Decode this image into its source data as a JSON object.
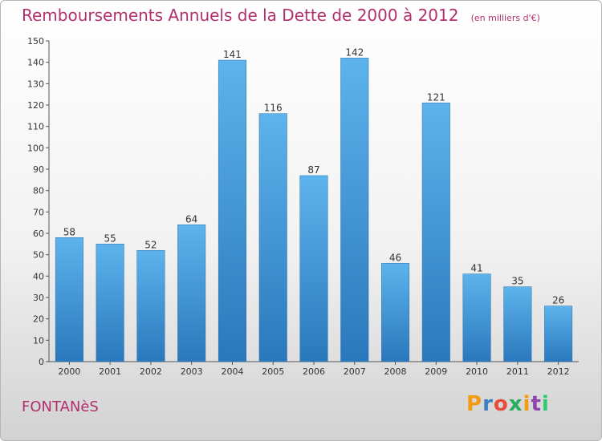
{
  "chart_data": {
    "type": "bar",
    "title": "Remboursements Annuels de la Dette de 2000 à 2012",
    "unit": "(en milliers d'€)",
    "categories": [
      "2000",
      "2001",
      "2002",
      "2003",
      "2004",
      "2005",
      "2006",
      "2007",
      "2008",
      "2009",
      "2010",
      "2011",
      "2012"
    ],
    "values": [
      58,
      55,
      52,
      64,
      141,
      116,
      87,
      142,
      46,
      121,
      41,
      35,
      26
    ],
    "ylim": [
      0,
      150
    ],
    "yticks": [
      0,
      10,
      20,
      30,
      40,
      50,
      60,
      70,
      80,
      90,
      100,
      110,
      120,
      130,
      140,
      150
    ],
    "grid": false,
    "bar_color": "#4a9ddc"
  },
  "footer": {
    "commune": "FONTANèS",
    "logo": "Proxiti"
  },
  "colors": {
    "accent": "#b0306e",
    "logo_letters": [
      "#f39c12",
      "#3a7fc1",
      "#e74c3c",
      "#27ae60",
      "#f39c12",
      "#8e44ad",
      "#2ecc71"
    ]
  }
}
